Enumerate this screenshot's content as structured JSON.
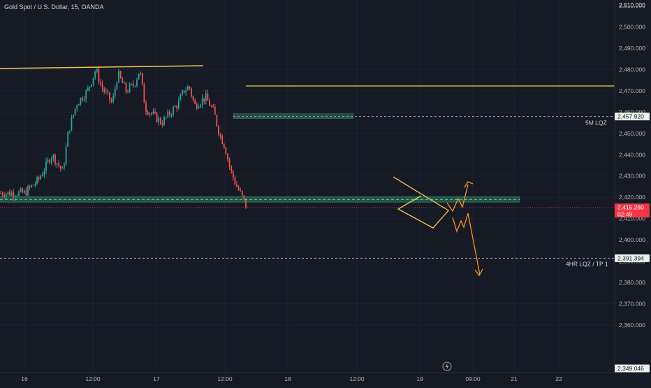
{
  "title": "Gold Spot / U.S. Dollar, 15, OANDA",
  "colors": {
    "background": "#161a25",
    "up": "#26a69a",
    "down": "#ef5350",
    "grid": "#1e2230",
    "trendline": "#f2c94c",
    "projection": "#f7931a",
    "zone": "#2e7d5b",
    "current_price": "#f23645",
    "axis_text": "#b2b5be"
  },
  "chart_data": {
    "type": "candlestick",
    "y_ticks": [
      2510,
      2500,
      2490,
      2480,
      2470,
      2460,
      2450,
      2440,
      2430,
      2420,
      2410,
      2400,
      2390,
      2380,
      2370,
      2360
    ],
    "y_range": [
      2345,
      2515
    ],
    "x_ticks": [
      "16",
      "12:00",
      "17",
      "12:00",
      "18",
      "12:00",
      "19",
      "09:00",
      "21",
      "22"
    ],
    "price_tags": [
      {
        "label": "2,510.000",
        "value": 2510
      },
      {
        "label": "2,457.920",
        "value": 2457.92,
        "note": "5M LQZ"
      },
      {
        "label": "2,415.260",
        "value": 2415.26,
        "countdown": "02:49",
        "role": "current"
      },
      {
        "label": "2,391.394",
        "value": 2391.394,
        "note": "4HR LQZ / TP 1"
      },
      {
        "label": "2,349.046",
        "value": 2349.046
      }
    ],
    "levels": [
      {
        "name": "resistance-line-left",
        "from": "16 00:00",
        "to": "17 19:00",
        "y_start": 2484,
        "y_end": 2484.5
      },
      {
        "name": "resistance-line-right",
        "from": "18 01:00",
        "to": "end",
        "y": 2475
      },
      {
        "name": "5M LQZ",
        "y": 2457.92,
        "zone": [
          2456.6,
          2458.4
        ]
      },
      {
        "name": "support-zone",
        "y": 2419,
        "zone": [
          2417.5,
          2420.5
        ]
      },
      {
        "name": "4HR LQZ / TP 1",
        "y": 2391.394
      }
    ],
    "patterns": [
      {
        "name": "triangle-wedge",
        "vertices_price": [
          2435,
          2420.5,
          2413.5,
          2421
        ]
      }
    ],
    "projections": [
      {
        "name": "bullish-scenario",
        "target": 2434
      },
      {
        "name": "bearish-scenario",
        "target": 2391.4
      }
    ],
    "key_points": [
      {
        "time": "16 00:00",
        "price": 2422
      },
      {
        "time": "16 05:00",
        "price": 2428
      },
      {
        "time": "16 10:00",
        "price": 2440
      },
      {
        "time": "16 14:00",
        "price": 2432
      },
      {
        "time": "16 16:00",
        "price": 2451
      },
      {
        "time": "16 19:00",
        "price": 2464
      },
      {
        "time": "16 23:00",
        "price": 2470
      },
      {
        "time": "17 02:00",
        "price": 2480
      },
      {
        "time": "17 04:00",
        "price": 2472
      },
      {
        "time": "17 08:00",
        "price": 2464
      },
      {
        "time": "17 10:00",
        "price": 2478
      },
      {
        "time": "17 13:00",
        "price": 2470
      },
      {
        "time": "17 16:00",
        "price": 2473
      },
      {
        "time": "17 18:00",
        "price": 2480
      },
      {
        "time": "17 20:00",
        "price": 2462
      },
      {
        "time": "18 02:00",
        "price": 2455
      },
      {
        "time": "18 04:00",
        "price": 2458
      },
      {
        "time": "18 08:00",
        "price": 2464
      },
      {
        "time": "18 10:00",
        "price": 2470
      },
      {
        "time": "18 12:00",
        "price": 2472
      },
      {
        "time": "18 14:00",
        "price": 2463
      },
      {
        "time": "18 18:00",
        "price": 2467
      },
      {
        "time": "18 21:00",
        "price": 2460
      },
      {
        "time": "18 23:00",
        "price": 2450
      },
      {
        "time": "19 01:00",
        "price": 2444
      },
      {
        "time": "19 03:00",
        "price": 2433
      },
      {
        "time": "19 05:00",
        "price": 2426
      },
      {
        "time": "19 07:00",
        "price": 2421
      },
      {
        "time": "19 09:00",
        "price": 2415.26
      }
    ]
  }
}
